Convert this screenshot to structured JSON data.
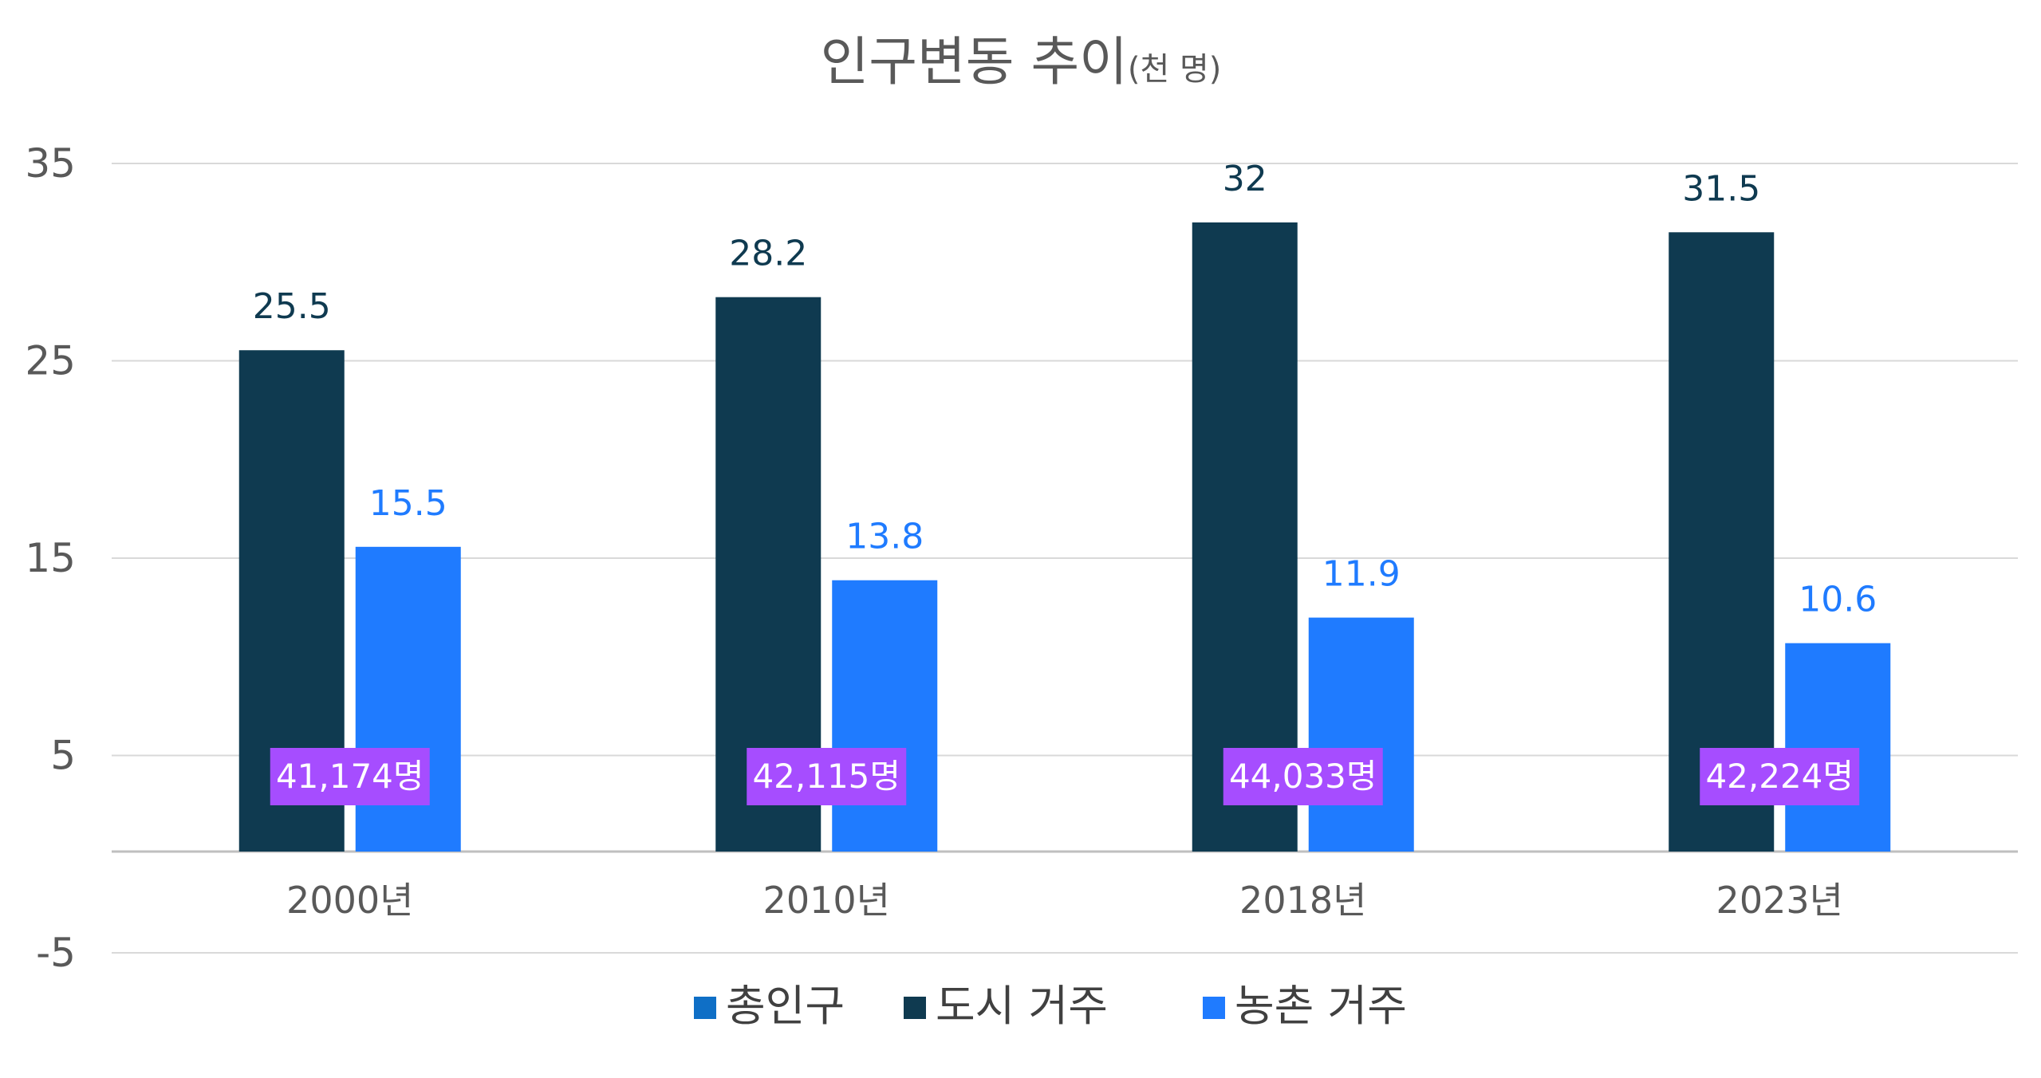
{
  "chart_data": {
    "type": "bar",
    "title": "인구변동 추이",
    "title_unit": "(천 명)",
    "categories": [
      "2000년",
      "2010년",
      "2018년",
      "2023년"
    ],
    "y_ticks": [
      "35",
      "25",
      "15",
      "5",
      "-5"
    ],
    "ylim": [
      -5,
      35
    ],
    "grid": true,
    "legend_position": "bottom",
    "series": [
      {
        "name": "총인구",
        "color": "#0f6fc6",
        "values": [
          41174,
          42115,
          44033,
          42224
        ],
        "labels": [
          "41,174명",
          "42,115명",
          "44,033명",
          "42,224명"
        ],
        "label_bg": "#a64dff"
      },
      {
        "name": "도시 거주",
        "color": "#0f3a50",
        "values": [
          25.5,
          28.2,
          32,
          31.5
        ],
        "labels": [
          "25.5",
          "28.2",
          "32",
          "31.5"
        ]
      },
      {
        "name": "농촌 거주",
        "color": "#1f7bff",
        "values": [
          15.5,
          13.8,
          11.9,
          10.6
        ],
        "labels": [
          "15.5",
          "13.8",
          "11.9",
          "10.6"
        ]
      }
    ]
  }
}
